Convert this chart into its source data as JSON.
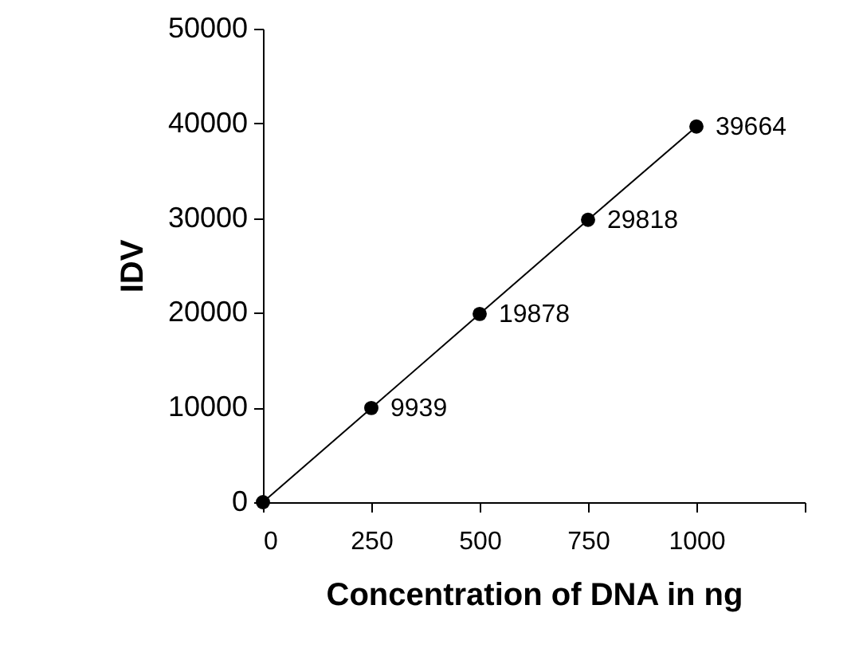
{
  "chart_data": {
    "type": "line",
    "xlabel": "Concentration of DNA in ng",
    "ylabel": "IDV",
    "x": [
      0,
      250,
      500,
      750,
      1000
    ],
    "series": [
      {
        "color": "#000000",
        "values": [
          0,
          9939,
          19878,
          29818,
          39664
        ],
        "value_labels": [
          null,
          "9939",
          "19878",
          "29818",
          "39664"
        ]
      }
    ],
    "xlim": [
      0,
      1250
    ],
    "xticks": [
      0,
      250,
      500,
      750,
      1000,
      {
        "value": 1250,
        "label": null
      }
    ],
    "ylim": [
      0,
      50000
    ],
    "yticks": [
      0,
      10000,
      20000,
      30000,
      40000,
      50000
    ],
    "grid": false,
    "marker": "circle",
    "line_style": "solid"
  }
}
